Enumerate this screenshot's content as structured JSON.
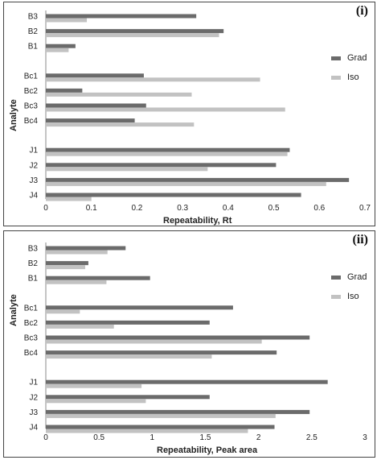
{
  "colors": {
    "grad": "#6b6b6b",
    "iso": "#c2c2c2"
  },
  "chart_data": [
    {
      "type": "bar",
      "orientation": "horizontal",
      "panel_tag": "(i)",
      "xlabel": "Repeatability, Rt",
      "ylabel": "Analyte",
      "xlim": [
        0,
        0.7
      ],
      "xticks": [
        "0",
        "0.1",
        "0.2",
        "0.3",
        "0.4",
        "0.5",
        "0.6",
        "0.7"
      ],
      "legend": "right",
      "categories": [
        "B3",
        "B2",
        "B1",
        "Bc1",
        "Bc2",
        "Bc3",
        "Bc4",
        "J1",
        "J2",
        "J3",
        "J4"
      ],
      "series": [
        {
          "name": "Grad",
          "values": [
            0.33,
            0.39,
            0.065,
            0.215,
            0.08,
            0.22,
            0.195,
            0.535,
            0.505,
            0.665,
            0.56
          ]
        },
        {
          "name": "Iso",
          "values": [
            0.09,
            0.38,
            0.05,
            0.47,
            0.32,
            0.525,
            0.325,
            0.53,
            0.355,
            0.615,
            0.1
          ]
        }
      ]
    },
    {
      "type": "bar",
      "orientation": "horizontal",
      "panel_tag": "(ii)",
      "xlabel": "Repeatability, Peak area",
      "ylabel": "Analyte",
      "xlim": [
        0,
        3
      ],
      "xticks": [
        "0",
        "0.5",
        "1",
        "1.5",
        "2",
        "2.5",
        "3"
      ],
      "legend": "right",
      "categories": [
        "B3",
        "B2",
        "B1",
        "Bc1",
        "Bc2",
        "Bc3",
        "Bc4",
        "J1",
        "J2",
        "J3",
        "J4"
      ],
      "series": [
        {
          "name": "Grad",
          "values": [
            0.75,
            0.4,
            0.98,
            1.76,
            1.54,
            2.48,
            2.17,
            2.65,
            1.54,
            2.48,
            2.15
          ]
        },
        {
          "name": "Iso",
          "values": [
            0.58,
            0.37,
            0.57,
            0.32,
            0.64,
            2.03,
            1.56,
            0.9,
            0.94,
            2.16,
            1.9
          ]
        }
      ]
    }
  ]
}
